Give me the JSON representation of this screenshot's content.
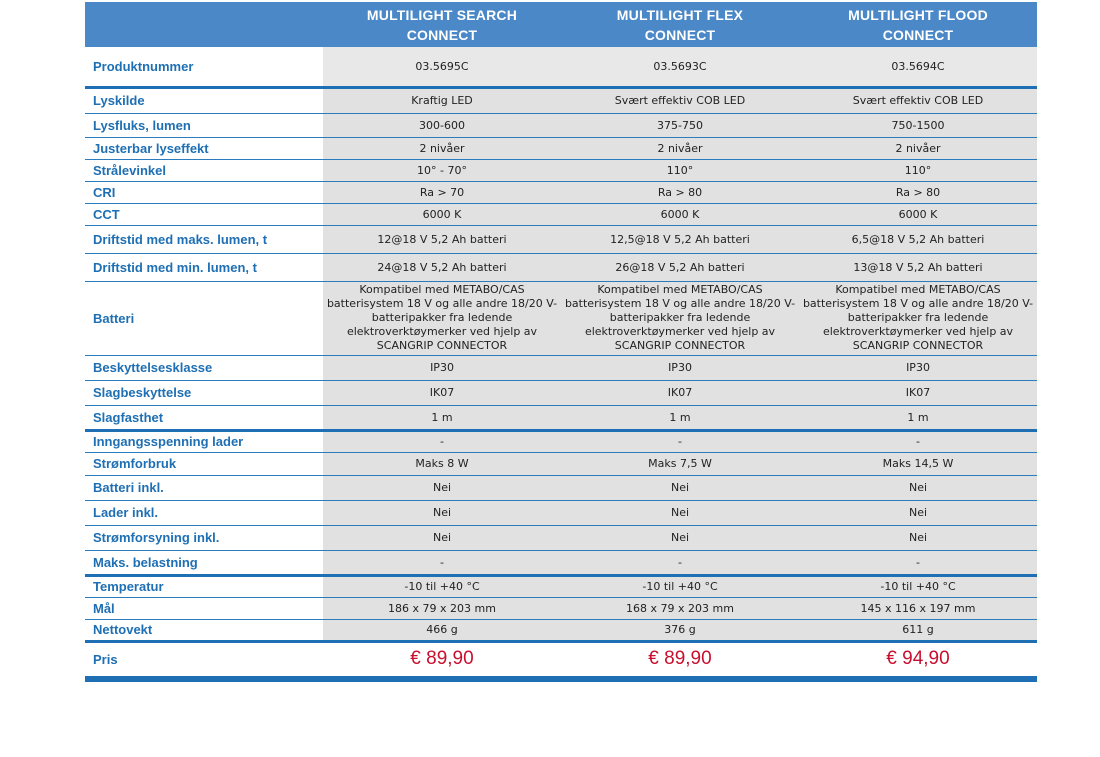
{
  "columns": [
    "MULTILIGHT SEARCH\nCONNECT",
    "MULTILIGHT FLEX\nCONNECT",
    "MULTILIGHT FLOOD\nCONNECT"
  ],
  "rows": [
    {
      "label": "Produktnummer",
      "values": [
        "03.5695C",
        "03.5693C",
        "03.5694C"
      ]
    },
    {
      "label": "Lyskilde",
      "values": [
        "Kraftig LED",
        "Svært effektiv COB LED",
        "Svært effektiv COB LED"
      ]
    },
    {
      "label": "Lysfluks, lumen",
      "values": [
        "300-600",
        "375-750",
        "750-1500"
      ]
    },
    {
      "label": "Justerbar lyseffekt",
      "values": [
        "2 nivåer",
        "2 nivåer",
        "2 nivåer"
      ]
    },
    {
      "label": "Strålevinkel",
      "values": [
        "10° - 70°",
        "110°",
        "110°"
      ]
    },
    {
      "label": "CRI",
      "values": [
        "Ra > 70",
        "Ra > 80",
        "Ra > 80"
      ]
    },
    {
      "label": "CCT",
      "values": [
        "6000 K",
        "6000 K",
        "6000 K"
      ]
    },
    {
      "label": "Driftstid med maks. lumen, t",
      "values": [
        "12@18 V 5,2 Ah batteri",
        "12,5@18 V 5,2 Ah batteri",
        "6,5@18 V 5,2 Ah batteri"
      ]
    },
    {
      "label": "Driftstid med min. lumen, t",
      "values": [
        "24@18 V 5,2 Ah batteri",
        "26@18 V 5,2 Ah batteri",
        "13@18 V 5,2 Ah batteri"
      ]
    },
    {
      "label": "Batteri",
      "values": [
        "Kompatibel med METABO/CAS batterisystem 18 V og alle andre 18/20 V-batteripakker fra ledende elektroverktøymerker ved hjelp av SCANGRIP CONNECTOR",
        "Kompatibel med METABO/CAS batterisystem 18 V og alle andre 18/20 V-batteripakker fra ledende elektroverktøymerker ved hjelp av SCANGRIP CONNECTOR",
        "Kompatibel med METABO/CAS batterisystem 18 V og alle andre 18/20 V-batteripakker fra ledende elektroverktøymerker ved hjelp av SCANGRIP CONNECTOR"
      ]
    },
    {
      "label": "Beskyttelsesklasse",
      "values": [
        "IP30",
        "IP30",
        "IP30"
      ]
    },
    {
      "label": "Slagbeskyttelse",
      "values": [
        "IK07",
        "IK07",
        "IK07"
      ]
    },
    {
      "label": "Slagfasthet",
      "values": [
        "1 m",
        "1 m",
        "1 m"
      ]
    },
    {
      "label": "Inngangsspenning lader",
      "values": [
        "-",
        "-",
        "-"
      ]
    },
    {
      "label": "Strømforbruk",
      "values": [
        "Maks 8 W",
        "Maks 7,5 W",
        "Maks 14,5 W"
      ]
    },
    {
      "label": "Batteri inkl.",
      "values": [
        "Nei",
        "Nei",
        "Nei"
      ]
    },
    {
      "label": "Lader inkl.",
      "values": [
        "Nei",
        "Nei",
        "Nei"
      ]
    },
    {
      "label": "Strømforsyning inkl.",
      "values": [
        "Nei",
        "Nei",
        "Nei"
      ]
    },
    {
      "label": "Maks. belastning",
      "values": [
        "-",
        "-",
        "-"
      ]
    },
    {
      "label": "Temperatur",
      "values": [
        "-10 til +40 °C",
        "-10 til +40 °C",
        "-10 til +40 °C"
      ]
    },
    {
      "label": "Mål",
      "values": [
        "186 x 79 x 203 mm",
        "168 x 79 x 203 mm",
        "145 x 116 x 197 mm"
      ]
    },
    {
      "label": "Nettovekt",
      "values": [
        "466 g",
        "376 g",
        "611 g"
      ]
    },
    {
      "label": "Pris",
      "values": [
        "€ 89,90",
        "€ 89,90",
        "€ 94,90"
      ]
    }
  ],
  "colors": {
    "header_bg": "#4a88c8",
    "label_text": "#1e6fb3",
    "price_text": "#c8102e",
    "cell_bg": "#e1e1e1"
  }
}
